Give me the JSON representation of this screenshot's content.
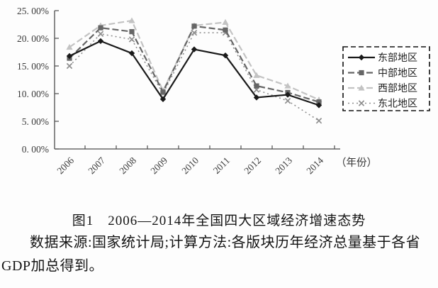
{
  "figure": {
    "caption": "图1　2006—2014年全国四大区域经济增速态势",
    "source_note": "数据来源:国家统计局;计算方法:各版块历年经济总量基于各省GDP加总得到。"
  },
  "colors": {
    "east": "#1a1a1a",
    "central": "#666666",
    "west": "#c3c3c3",
    "northeast": "#8f8f8f",
    "axis": "#4d4d4d",
    "background": "#fdfdfd"
  },
  "chart_data": {
    "type": "line",
    "title": "图1 2006—2014年全国四大区域经济增速态势",
    "x": [
      "2006",
      "2007",
      "2008",
      "2009",
      "2010",
      "2011",
      "2012",
      "2013",
      "2014"
    ],
    "xlabel": "（年份）",
    "ylabel": "",
    "ylim": [
      0,
      25
    ],
    "y_ticks": [
      0,
      5,
      10,
      15,
      20,
      25
    ],
    "y_tick_labels": [
      "0. 00%",
      "5. 00%",
      "10. 00%",
      "15. 00%",
      "20. 00%",
      "25. 00%"
    ],
    "grid": false,
    "legend_position": "right",
    "legend_border": "dashed",
    "series": [
      {
        "key": "east",
        "name": "东部地区",
        "marker": "diamond",
        "line": "solid",
        "color": "#1a1a1a",
        "values": [
          16.8,
          19.5,
          17.3,
          9.0,
          18.0,
          16.9,
          9.3,
          9.8,
          7.9
        ]
      },
      {
        "key": "central",
        "name": "中部地区",
        "marker": "square",
        "line": "dashed",
        "color": "#666666",
        "values": [
          16.4,
          21.9,
          21.2,
          10.3,
          22.2,
          21.5,
          11.4,
          10.2,
          8.5
        ]
      },
      {
        "key": "west",
        "name": "西部地区",
        "marker": "triangle",
        "line": "dashed",
        "color": "#c3c3c3",
        "values": [
          18.4,
          22.3,
          23.2,
          10.5,
          22.3,
          22.9,
          13.3,
          11.4,
          8.9
        ]
      },
      {
        "key": "northeast",
        "name": "东北地区",
        "marker": "x",
        "line": "dash-dot",
        "color": "#8f8f8f",
        "values": [
          15.0,
          20.8,
          19.8,
          10.0,
          21.0,
          21.0,
          10.7,
          8.7,
          5.1
        ]
      }
    ]
  }
}
